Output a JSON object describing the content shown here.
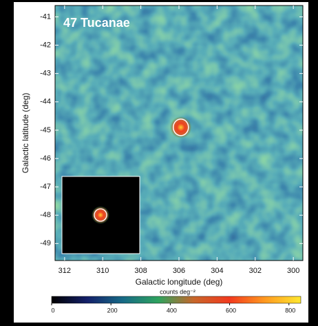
{
  "chart_data": {
    "type": "image",
    "title": "47 Tucanae",
    "x_label": "Galactic longitude (deg)",
    "y_label": "Galactic latitude (deg)",
    "xlim": [
      312.5,
      299.5
    ],
    "xticks": [
      312,
      310,
      308,
      306,
      304,
      302,
      300
    ],
    "ylim": [
      -49.6,
      -40.6
    ],
    "yticks": [
      -49,
      -48,
      -47,
      -46,
      -45,
      -44,
      -43,
      -42,
      -41
    ],
    "source": {
      "x": 305.9,
      "y": -44.9
    },
    "colorbar": {
      "label": "counts deg⁻²",
      "lim": [
        0,
        840
      ],
      "ticks": [
        0,
        200,
        400,
        600,
        800
      ],
      "colormap": [
        "#000000",
        "#14206a",
        "#176a86",
        "#2ea35e",
        "#c8662a",
        "#f23a1e",
        "#ff9a20",
        "#ffe830"
      ]
    }
  }
}
